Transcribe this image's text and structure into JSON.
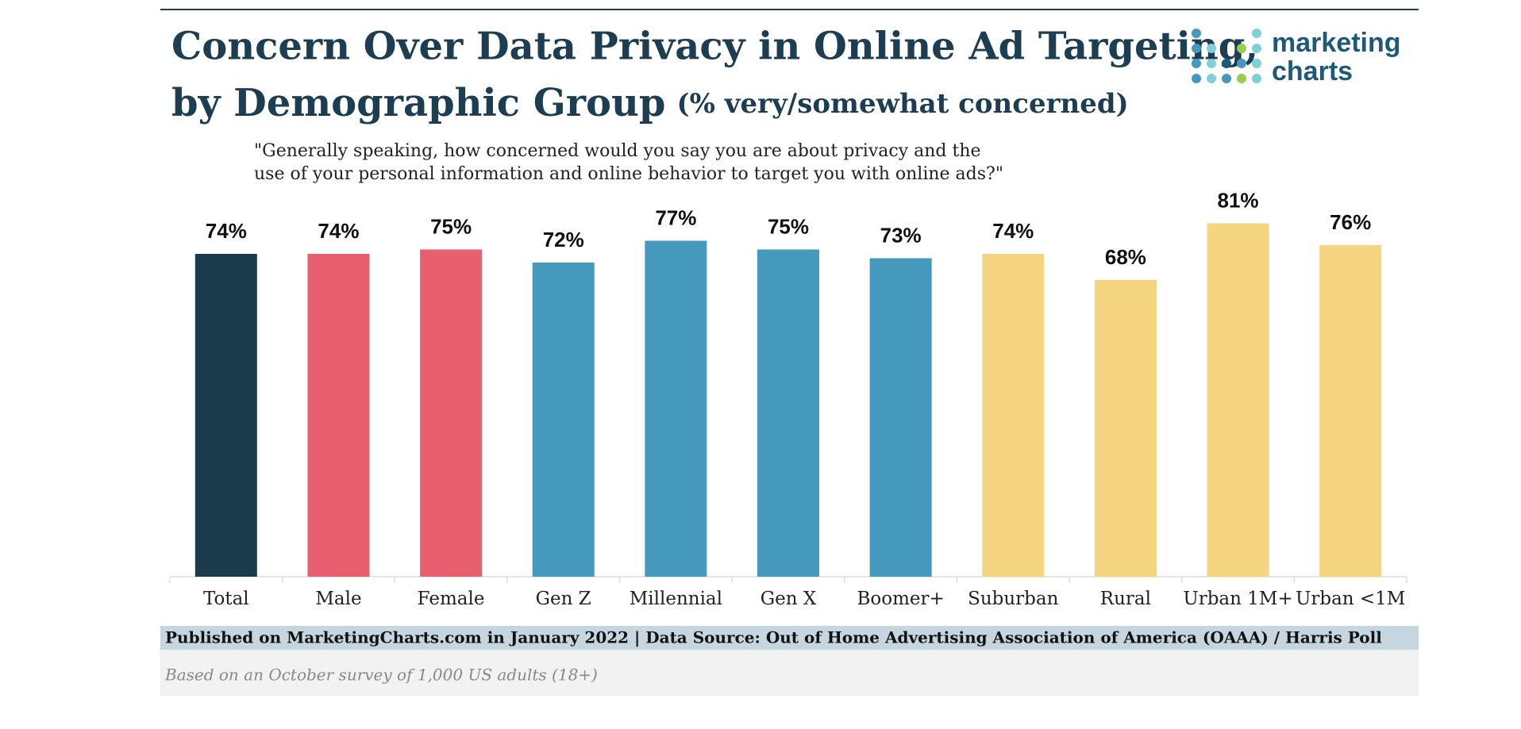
{
  "chart_data": {
    "type": "bar",
    "title": "Concern Over Data Privacy in Online Ad Targeting,",
    "title_line2": "by Demographic Group",
    "subtitle": "(% very/somewhat concerned)",
    "question": [
      "\"Generally speaking, how concerned would you say you are about privacy and the",
      "use of your personal information and online behavior to target you with online ads?\""
    ],
    "categories": [
      "Total",
      "Male",
      "Female",
      "Gen Z",
      "Millennial",
      "Gen X",
      "Boomer+",
      "Suburban",
      "Rural",
      "Urban 1M+",
      "Urban <1M"
    ],
    "values": [
      74,
      74,
      75,
      72,
      77,
      75,
      73,
      74,
      68,
      81,
      76
    ],
    "value_labels": [
      "74%",
      "74%",
      "75%",
      "72%",
      "77%",
      "75%",
      "73%",
      "74%",
      "68%",
      "81%",
      "76%"
    ],
    "colors": [
      "#1b3a4b",
      "#e8606f",
      "#e8606f",
      "#4499bd",
      "#4499bd",
      "#4499bd",
      "#4499bd",
      "#f5d57f",
      "#f5d57f",
      "#f5d57f",
      "#f5d57f"
    ],
    "source": "Published on MarketingCharts.com in January 2022 | Data Source: Out of Home Advertising Association of America (OAAA) / Harris Poll",
    "note": "Based on an October survey of 1,000 US adults (18+)",
    "logo": [
      "marketing",
      "charts"
    ]
  }
}
